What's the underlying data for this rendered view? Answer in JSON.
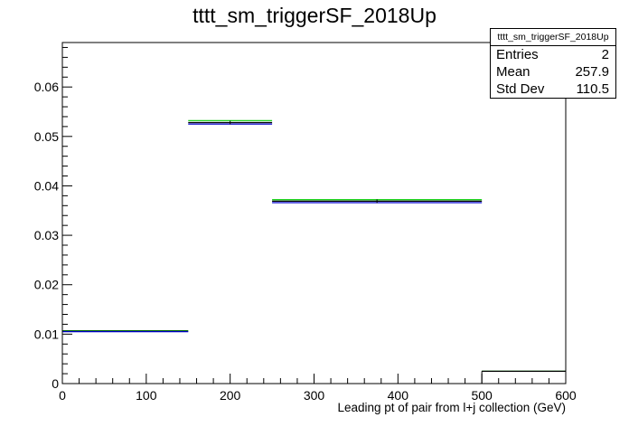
{
  "chart_data": {
    "type": "histogram",
    "title": "tttt_sm_triggerSF_2018Up",
    "xlabel": "Leading pt of pair from l+j collection (GeV)",
    "ylabel": "",
    "xlim": [
      0,
      600
    ],
    "ylim": [
      0,
      0.069
    ],
    "x_ticks": [
      "0",
      "100",
      "200",
      "300",
      "400",
      "500",
      "600"
    ],
    "y_ticks": [
      "0",
      "0.01",
      "0.02",
      "0.03",
      "0.04",
      "0.05",
      "0.06"
    ],
    "series": [
      {
        "color": "#00cc00",
        "bins": [
          {
            "x0": 0,
            "x1": 150,
            "y": 0.0107
          },
          {
            "x0": 150,
            "x1": 250,
            "y": 0.0532
          },
          {
            "x0": 250,
            "x1": 500,
            "y": 0.0372
          },
          {
            "x0": 500,
            "x1": 600,
            "y": 0.0025
          }
        ]
      },
      {
        "color": "#000000",
        "bins": [
          {
            "x0": 0,
            "x1": 150,
            "y": 0.0106
          },
          {
            "x0": 150,
            "x1": 250,
            "y": 0.0528
          },
          {
            "x0": 250,
            "x1": 500,
            "y": 0.0369
          },
          {
            "x0": 500,
            "x1": 600,
            "y": 0.0025
          }
        ]
      },
      {
        "color": "#0000cc",
        "bins": [
          {
            "x0": 0,
            "x1": 150,
            "y": 0.0105
          },
          {
            "x0": 150,
            "x1": 250,
            "y": 0.0525
          },
          {
            "x0": 250,
            "x1": 500,
            "y": 0.0366
          }
        ]
      }
    ],
    "stats": {
      "title": "tttt_sm_triggerSF_2018Up",
      "entries_label": "Entries",
      "entries": "2",
      "mean_label": "Mean",
      "mean": "257.9",
      "std_label": "Std Dev",
      "std": "110.5"
    }
  }
}
